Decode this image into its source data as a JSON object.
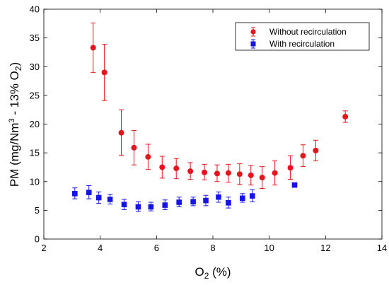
{
  "chart_data": {
    "type": "scatter",
    "xlabel": {
      "base": "O",
      "sub": "2",
      "rest": " (%)"
    },
    "ylabel": {
      "pre": "PM (mg/Nm",
      "sup": "3",
      "mid": " - 13% O",
      "sub": "2",
      "post": ")"
    },
    "xlim": [
      2,
      14
    ],
    "ylim": [
      0,
      40
    ],
    "xticks": [
      2,
      4,
      6,
      8,
      10,
      12,
      14
    ],
    "yticks": [
      0,
      5,
      10,
      15,
      20,
      25,
      30,
      35,
      40
    ],
    "grid": false,
    "legend_position": "top-right",
    "series": [
      {
        "name": "Without recirculation",
        "color": "#e8141b",
        "marker": "circle",
        "points": [
          {
            "x": 3.75,
            "y": 33.3,
            "lo": 29.0,
            "hi": 37.6
          },
          {
            "x": 4.15,
            "y": 29.0,
            "lo": 24.1,
            "hi": 33.9
          },
          {
            "x": 4.75,
            "y": 18.5,
            "lo": 14.6,
            "hi": 22.5
          },
          {
            "x": 5.2,
            "y": 15.9,
            "lo": 12.9,
            "hi": 18.9
          },
          {
            "x": 5.7,
            "y": 14.3,
            "lo": 12.1,
            "hi": 16.5
          },
          {
            "x": 6.2,
            "y": 12.5,
            "lo": 10.6,
            "hi": 14.4
          },
          {
            "x": 6.7,
            "y": 12.3,
            "lo": 10.5,
            "hi": 14.0
          },
          {
            "x": 7.2,
            "y": 11.8,
            "lo": 10.4,
            "hi": 13.3
          },
          {
            "x": 7.7,
            "y": 11.6,
            "lo": 10.3,
            "hi": 13.0
          },
          {
            "x": 8.15,
            "y": 11.4,
            "lo": 10.0,
            "hi": 12.9
          },
          {
            "x": 8.55,
            "y": 11.5,
            "lo": 9.9,
            "hi": 13.0
          },
          {
            "x": 8.95,
            "y": 11.3,
            "lo": 9.5,
            "hi": 13.1
          },
          {
            "x": 9.35,
            "y": 11.1,
            "lo": 9.4,
            "hi": 12.8
          },
          {
            "x": 9.75,
            "y": 10.7,
            "lo": 8.8,
            "hi": 12.6
          },
          {
            "x": 10.2,
            "y": 11.5,
            "lo": 9.4,
            "hi": 13.6
          },
          {
            "x": 10.75,
            "y": 12.4,
            "lo": 10.4,
            "hi": 14.5
          },
          {
            "x": 11.2,
            "y": 14.5,
            "lo": 12.6,
            "hi": 16.4
          },
          {
            "x": 11.65,
            "y": 15.4,
            "lo": 13.6,
            "hi": 17.2
          },
          {
            "x": 12.7,
            "y": 21.3,
            "lo": 20.3,
            "hi": 22.3
          }
        ]
      },
      {
        "name": "With recirculation",
        "color": "#1414e6",
        "marker": "square",
        "points": [
          {
            "x": 3.1,
            "y": 7.9,
            "lo": 7.0,
            "hi": 8.9
          },
          {
            "x": 3.6,
            "y": 8.1,
            "lo": 7.0,
            "hi": 9.3
          },
          {
            "x": 3.95,
            "y": 7.2,
            "lo": 6.2,
            "hi": 8.2
          },
          {
            "x": 4.35,
            "y": 6.9,
            "lo": 6.1,
            "hi": 7.8
          },
          {
            "x": 4.85,
            "y": 6.0,
            "lo": 5.1,
            "hi": 6.9
          },
          {
            "x": 5.35,
            "y": 5.6,
            "lo": 4.8,
            "hi": 6.5
          },
          {
            "x": 5.8,
            "y": 5.6,
            "lo": 4.9,
            "hi": 6.4
          },
          {
            "x": 6.3,
            "y": 5.9,
            "lo": 5.1,
            "hi": 6.8
          },
          {
            "x": 6.8,
            "y": 6.4,
            "lo": 5.6,
            "hi": 7.3
          },
          {
            "x": 7.3,
            "y": 6.5,
            "lo": 5.8,
            "hi": 7.3
          },
          {
            "x": 7.75,
            "y": 6.7,
            "lo": 5.8,
            "hi": 7.6
          },
          {
            "x": 8.2,
            "y": 7.3,
            "lo": 6.4,
            "hi": 8.2
          },
          {
            "x": 8.55,
            "y": 6.3,
            "lo": 5.4,
            "hi": 7.3
          },
          {
            "x": 9.05,
            "y": 7.1,
            "lo": 6.4,
            "hi": 7.9
          },
          {
            "x": 9.4,
            "y": 7.5,
            "lo": 6.5,
            "hi": 8.6
          },
          {
            "x": 10.9,
            "y": 9.4,
            "lo": 9.1,
            "hi": 9.7
          }
        ]
      }
    ]
  }
}
